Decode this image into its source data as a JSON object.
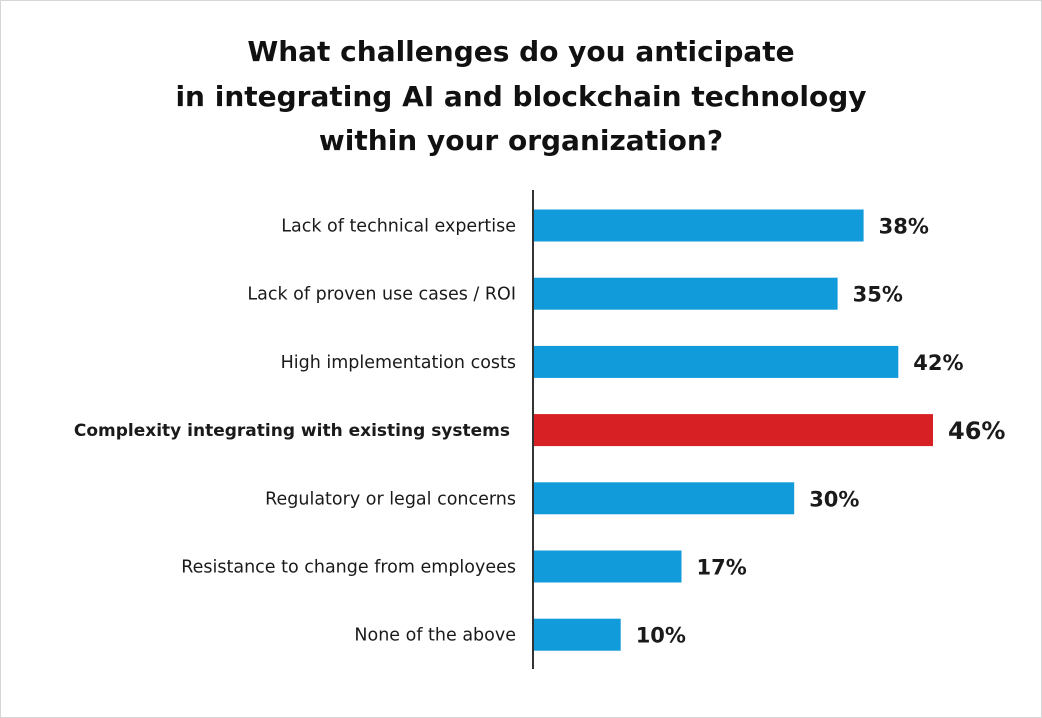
{
  "chart_data": {
    "type": "bar",
    "orientation": "horizontal",
    "title_lines": [
      "What challenges do you anticipate",
      "in integrating AI and blockchain technology",
      "within your organization?"
    ],
    "categories": [
      "Lack of technical expertise",
      "Lack of proven use cases / ROI",
      "High implementation costs",
      "Complexity integrating with existing systems",
      "Regulatory or legal concerns",
      "Resistance to change from employees",
      "None of the above"
    ],
    "values": [
      38,
      35,
      42,
      46,
      30,
      17,
      10
    ],
    "value_labels": [
      "38%",
      "35%",
      "42%",
      "46%",
      "30%",
      "17%",
      "10%"
    ],
    "highlight_index": 3,
    "colors": {
      "bar": "#129bdb",
      "highlight": "#d62024",
      "axis": "#333333"
    },
    "xlim": [
      0,
      46
    ],
    "grid": false,
    "legend": "none"
  }
}
